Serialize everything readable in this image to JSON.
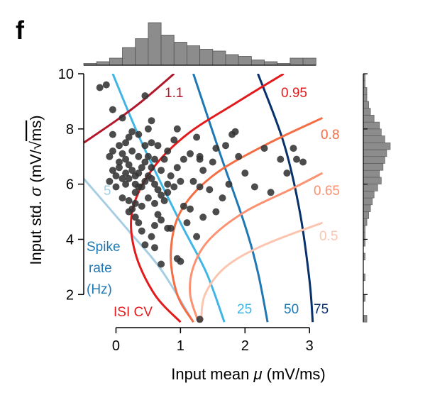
{
  "panel_letter": "f",
  "colors": {
    "cv_1_1": "#b2182b",
    "cv_0_95": "#e31a1c",
    "cv_0_8": "#f46d43",
    "cv_0_65": "#fc9272",
    "cv_0_5": "#fcc5b0",
    "rate_5": "#a6cee3",
    "rate_25": "#41b6e6",
    "rate_50": "#1f78b4",
    "rate_75": "#08306b",
    "isi_label": "#e31a1c",
    "rate_label": "#1f78b4",
    "points": "#333333",
    "hist": "#8c8c8c"
  },
  "chart_data": {
    "type": "scatter",
    "xlabel_prefix": "Input mean ",
    "xlabel_symbol": "μ",
    "xlabel_suffix": " (mV/ms)",
    "ylabel_prefix": "Input std. ",
    "ylabel_symbol": "σ",
    "ylabel_unit_open": " (mV/",
    "ylabel_sqrt": "√",
    "ylabel_unit_inner": "ms",
    "ylabel_unit_close": ")",
    "xlim": [
      -0.5,
      3.35
    ],
    "ylim": [
      0.8,
      10.0
    ],
    "xticks": [
      0,
      1,
      2,
      3
    ],
    "yticks": [
      2,
      4,
      6,
      8,
      10
    ],
    "xtick_labels": [
      "0",
      "1",
      "2",
      "3"
    ],
    "ytick_labels": [
      "2",
      "4",
      "6",
      "8",
      "10"
    ],
    "grid": false,
    "isi_cv_label": "ISI CV",
    "rate_label_lines": [
      "Spike",
      "rate",
      "(Hz)"
    ],
    "isi_cv_contours": [
      {
        "label": "1.1",
        "color_key": "cv_1_1",
        "points": [
          [
            -0.5,
            7.5
          ],
          [
            0.0,
            8.3
          ],
          [
            0.4,
            9.0
          ],
          [
            0.9,
            10.0
          ]
        ]
      },
      {
        "label": "0.95",
        "color_key": "cv_0_95",
        "points": [
          [
            1.0,
            1.0
          ],
          [
            0.6,
            2.0
          ],
          [
            0.3,
            3.5
          ],
          [
            0.25,
            5.0
          ],
          [
            0.55,
            6.5
          ],
          [
            1.1,
            7.8
          ],
          [
            1.9,
            9.0
          ],
          [
            2.6,
            10.0
          ]
        ]
      },
      {
        "label": "0.8",
        "color_key": "cv_0_8",
        "points": [
          [
            1.2,
            1.0
          ],
          [
            0.95,
            2.0
          ],
          [
            0.85,
            3.5
          ],
          [
            1.0,
            5.0
          ],
          [
            1.5,
            6.3
          ],
          [
            2.3,
            7.4
          ],
          [
            3.2,
            8.4
          ]
        ]
      },
      {
        "label": "0.65",
        "color_key": "cv_0_65",
        "points": [
          [
            1.28,
            1.0
          ],
          [
            1.15,
            2.0
          ],
          [
            1.2,
            3.0
          ],
          [
            1.45,
            4.0
          ],
          [
            2.0,
            5.0
          ],
          [
            2.7,
            5.8
          ],
          [
            3.2,
            6.4
          ]
        ]
      },
      {
        "label": "0.5",
        "color_key": "cv_0_5",
        "points": [
          [
            1.32,
            1.0
          ],
          [
            1.38,
            2.0
          ],
          [
            1.7,
            3.0
          ],
          [
            2.3,
            3.8
          ],
          [
            3.2,
            4.6
          ]
        ]
      }
    ],
    "rate_contours": [
      {
        "label": "5",
        "color_key": "rate_5",
        "points": [
          [
            -0.5,
            6.2
          ],
          [
            0.2,
            4.3
          ],
          [
            0.7,
            2.9
          ],
          [
            1.2,
            1.0
          ]
        ]
      },
      {
        "label": "25",
        "color_key": "rate_25",
        "points": [
          [
            -0.05,
            10.0
          ],
          [
            0.4,
            7.5
          ],
          [
            1.0,
            4.6
          ],
          [
            1.4,
            2.8
          ],
          [
            1.68,
            1.0
          ]
        ]
      },
      {
        "label": "50",
        "color_key": "rate_50",
        "points": [
          [
            1.2,
            10.0
          ],
          [
            1.6,
            7.2
          ],
          [
            2.0,
            4.5
          ],
          [
            2.2,
            2.8
          ],
          [
            2.35,
            1.0
          ]
        ]
      },
      {
        "label": "75",
        "color_key": "rate_75",
        "points": [
          [
            2.2,
            10.0
          ],
          [
            2.6,
            7.5
          ],
          [
            2.85,
            5.0
          ],
          [
            3.0,
            2.5
          ],
          [
            3.05,
            1.0
          ]
        ]
      }
    ],
    "points": [
      [
        -0.25,
        9.5
      ],
      [
        -0.15,
        9.6
      ],
      [
        -0.05,
        8.7
      ],
      [
        0.1,
        8.4
      ],
      [
        0.45,
        9.2
      ],
      [
        0.5,
        8.0
      ],
      [
        0.35,
        7.8
      ],
      [
        0.2,
        7.7
      ],
      [
        0.65,
        7.4
      ],
      [
        0.9,
        7.6
      ],
      [
        0.95,
        8.0
      ],
      [
        1.25,
        7.7
      ],
      [
        1.15,
        7.1
      ],
      [
        1.3,
        7.0
      ],
      [
        1.35,
        6.5
      ],
      [
        1.5,
        6.8
      ],
      [
        1.55,
        7.3
      ],
      [
        1.7,
        7.4
      ],
      [
        1.8,
        7.8
      ],
      [
        1.85,
        7.9
      ],
      [
        1.9,
        7.0
      ],
      [
        2.0,
        6.4
      ],
      [
        1.75,
        6.0
      ],
      [
        1.65,
        5.5
      ],
      [
        1.45,
        5.8
      ],
      [
        1.3,
        5.9
      ],
      [
        1.2,
        6.1
      ],
      [
        1.05,
        5.2
      ],
      [
        1.35,
        4.8
      ],
      [
        1.1,
        4.6
      ],
      [
        0.8,
        4.4
      ],
      [
        0.6,
        3.7
      ],
      [
        0.7,
        3.1
      ],
      [
        0.95,
        3.3
      ],
      [
        1.0,
        3.2
      ],
      [
        0.85,
        4.4
      ],
      [
        0.55,
        4.1
      ],
      [
        0.4,
        4.3
      ],
      [
        0.45,
        3.8
      ],
      [
        0.3,
        4.8
      ],
      [
        0.25,
        5.1
      ],
      [
        0.2,
        5.4
      ],
      [
        0.3,
        5.7
      ],
      [
        0.35,
        5.9
      ],
      [
        0.1,
        5.5
      ],
      [
        0.15,
        6.0
      ],
      [
        0.0,
        6.3
      ],
      [
        -0.05,
        6.5
      ],
      [
        0.05,
        6.8
      ],
      [
        -0.1,
        7.0
      ],
      [
        -0.05,
        7.2
      ],
      [
        0.05,
        7.4
      ],
      [
        0.1,
        7.1
      ],
      [
        0.15,
        6.9
      ],
      [
        0.2,
        6.7
      ],
      [
        0.25,
        6.5
      ],
      [
        0.3,
        6.3
      ],
      [
        0.35,
        6.4
      ],
      [
        0.4,
        6.6
      ],
      [
        0.45,
        6.8
      ],
      [
        0.5,
        7.0
      ],
      [
        0.55,
        6.2
      ],
      [
        0.6,
        6.0
      ],
      [
        0.65,
        5.8
      ],
      [
        0.7,
        6.5
      ],
      [
        0.75,
        6.9
      ],
      [
        0.8,
        7.2
      ],
      [
        0.85,
        6.3
      ],
      [
        0.9,
        5.9
      ],
      [
        0.4,
        5.2
      ],
      [
        0.5,
        5.5
      ],
      [
        0.6,
        5.3
      ],
      [
        0.65,
        4.9
      ],
      [
        0.7,
        5.6
      ],
      [
        0.45,
        6.1
      ],
      [
        0.2,
        6.2
      ],
      [
        0.25,
        7.2
      ],
      [
        0.35,
        7.0
      ],
      [
        0.15,
        6.4
      ],
      [
        0.55,
        6.6
      ],
      [
        0.6,
        6.9
      ],
      [
        0.3,
        6.0
      ],
      [
        0.4,
        5.9
      ],
      [
        0.5,
        6.3
      ],
      [
        -0.1,
        6.1
      ],
      [
        0.0,
        5.9
      ],
      [
        0.05,
        6.6
      ],
      [
        0.1,
        6.2
      ],
      [
        0.45,
        7.4
      ],
      [
        0.55,
        7.5
      ],
      [
        0.75,
        5.4
      ],
      [
        0.8,
        5.7
      ],
      [
        0.3,
        5.3
      ],
      [
        0.2,
        5.0
      ],
      [
        0.35,
        4.6
      ],
      [
        0.6,
        4.5
      ],
      [
        0.7,
        4.7
      ],
      [
        0.8,
        6.0
      ],
      [
        0.95,
        6.6
      ],
      [
        1.0,
        6.1
      ],
      [
        2.3,
        7.3
      ],
      [
        2.55,
        6.9
      ],
      [
        2.75,
        7.3
      ],
      [
        2.8,
        6.9
      ],
      [
        2.9,
        6.8
      ],
      [
        2.65,
        6.4
      ],
      [
        2.4,
        5.7
      ],
      [
        2.15,
        5.9
      ],
      [
        1.55,
        5.0
      ],
      [
        1.25,
        4.1
      ],
      [
        1.15,
        5.1
      ],
      [
        1.3,
        6.9
      ],
      [
        1.05,
        6.9
      ],
      [
        0.25,
        7.9
      ],
      [
        0.55,
        8.3
      ],
      [
        -0.05,
        7.8
      ],
      [
        0.15,
        7.5
      ],
      [
        1.3,
        1.1
      ]
    ],
    "top_histogram": {
      "bin_edges": [
        -0.5,
        -0.3,
        -0.1,
        0.1,
        0.3,
        0.5,
        0.7,
        0.9,
        1.1,
        1.3,
        1.5,
        1.7,
        1.9,
        2.1,
        2.3,
        2.5,
        2.7,
        2.9,
        3.1
      ],
      "counts": [
        1,
        2,
        4,
        10,
        15,
        24,
        17,
        13,
        11,
        9,
        8,
        6,
        5,
        3,
        2,
        1,
        4,
        4
      ]
    },
    "right_histogram": {
      "bin_edges": [
        1.0,
        1.25,
        1.5,
        1.75,
        2.0,
        2.25,
        2.5,
        2.75,
        3.0,
        3.25,
        3.5,
        3.75,
        4.0,
        4.25,
        4.5,
        4.75,
        5.0,
        5.25,
        5.5,
        5.75,
        6.0,
        6.25,
        6.5,
        6.75,
        7.0,
        7.25,
        7.5,
        7.75,
        8.0,
        8.25,
        8.5,
        8.75,
        9.0,
        9.25,
        9.5,
        9.75,
        10.0
      ],
      "counts": [
        2,
        0,
        0,
        1,
        0,
        0,
        1,
        0,
        0,
        1,
        0,
        1,
        1,
        1,
        2,
        3,
        4,
        5,
        6,
        8,
        10,
        9,
        11,
        12,
        13,
        15,
        12,
        10,
        9,
        6,
        4,
        3,
        2,
        2,
        1,
        1
      ]
    }
  }
}
